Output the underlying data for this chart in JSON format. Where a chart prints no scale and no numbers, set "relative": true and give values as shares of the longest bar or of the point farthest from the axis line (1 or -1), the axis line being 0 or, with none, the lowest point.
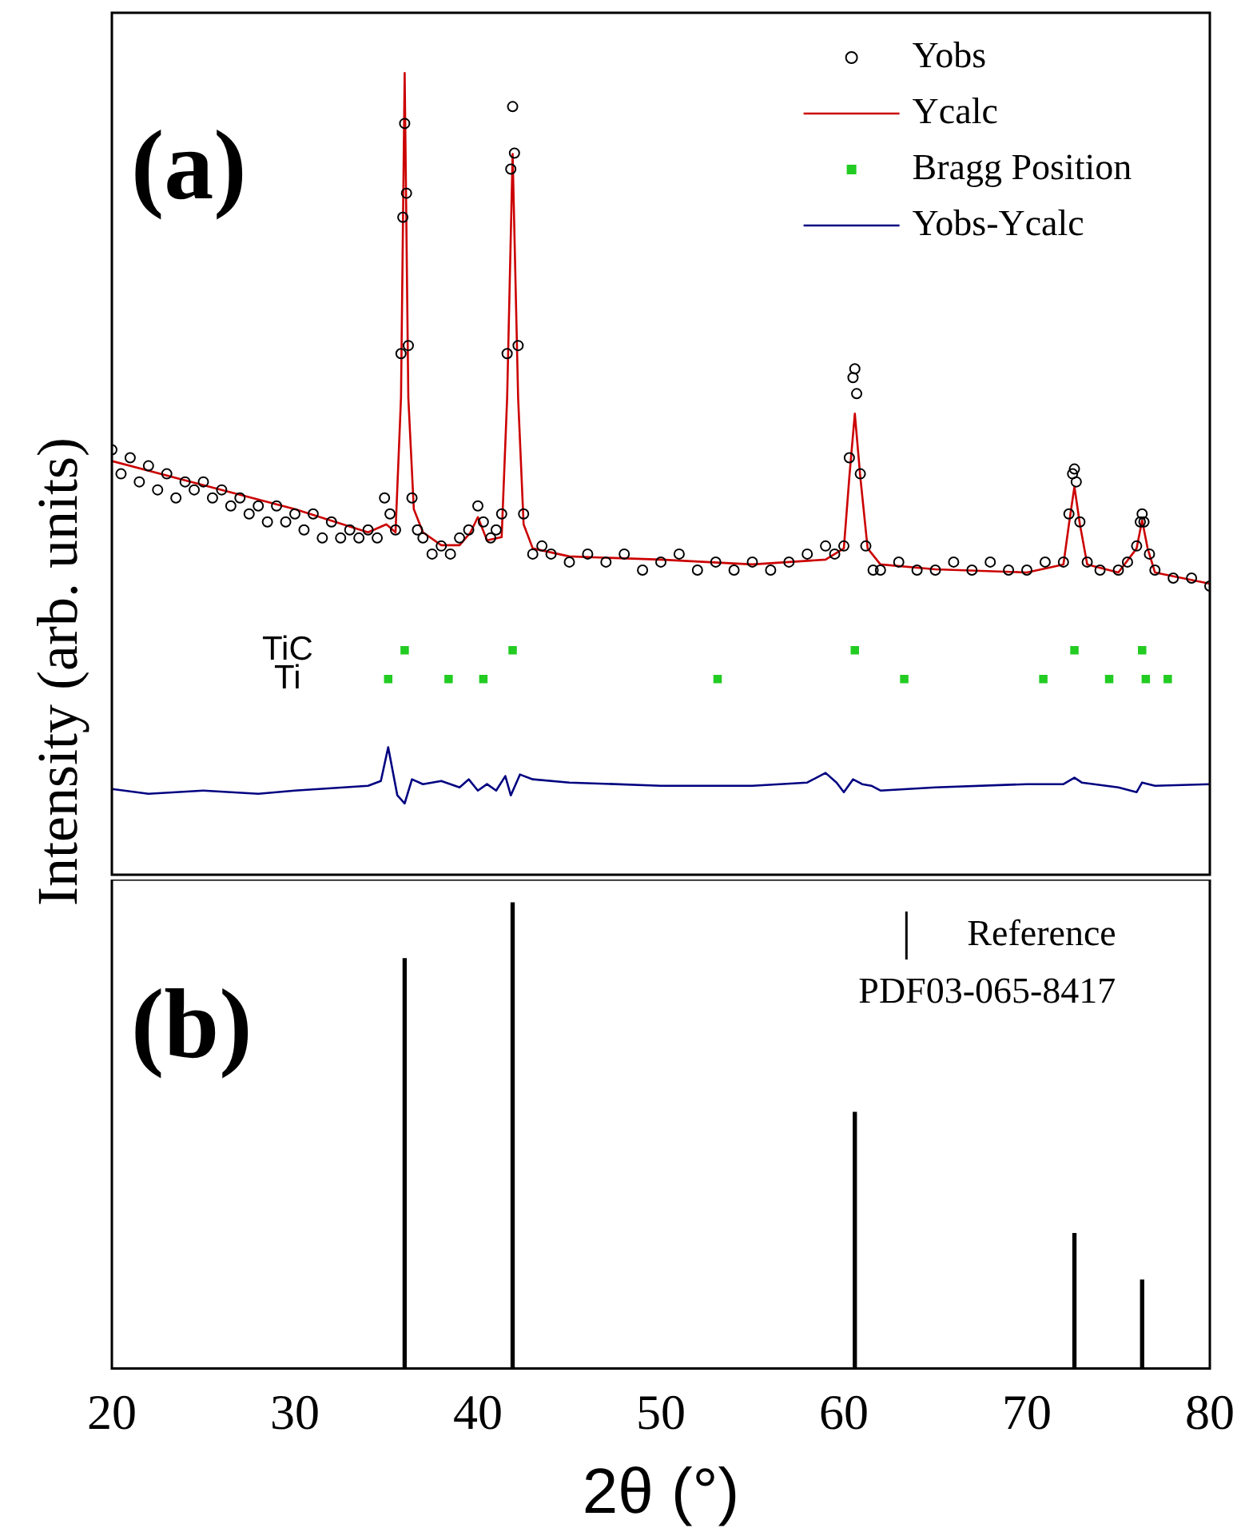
{
  "chart_data": [
    {
      "type": "line",
      "relative": true,
      "xlim": [
        20,
        80
      ],
      "tick_labels": false,
      "ylabel": "Intensity (arb. units)",
      "legend": "top right",
      "annotations": [
        "(a)",
        "TiC",
        "Ti"
      ],
      "series": [
        {
          "name": "Yobs",
          "type": "scatter",
          "marker": "circle",
          "color": "#000000",
          "x": [
            20,
            20.5,
            21,
            21.5,
            22,
            22.5,
            23,
            23.5,
            24,
            24.5,
            25,
            25.5,
            26,
            26.5,
            27,
            27.5,
            28,
            28.5,
            29,
            29.5,
            30,
            30.5,
            31,
            31.5,
            32,
            32.5,
            33,
            33.5,
            34,
            34.5,
            34.9,
            35.2,
            35.5,
            35.8,
            35.9,
            36,
            36.1,
            36.2,
            36.4,
            36.7,
            37,
            37.5,
            38,
            38.5,
            39,
            39.5,
            40,
            40.3,
            40.7,
            41,
            41.3,
            41.6,
            41.8,
            41.9,
            42,
            42.2,
            42.5,
            43,
            43.5,
            44,
            45,
            46,
            47,
            48,
            49,
            50,
            51,
            52,
            53,
            54,
            55,
            56,
            57,
            58,
            59,
            59.5,
            60,
            60.3,
            60.5,
            60.6,
            60.7,
            60.9,
            61.2,
            61.6,
            62,
            63,
            64,
            65,
            66,
            67,
            68,
            69,
            70,
            71,
            72,
            72.3,
            72.5,
            72.6,
            72.7,
            72.9,
            73.3,
            74,
            75,
            75.5,
            76,
            76.2,
            76.3,
            76.4,
            76.7,
            77,
            78,
            79,
            80
          ],
          "values": [
            0.53,
            0.5,
            0.52,
            0.49,
            0.51,
            0.48,
            0.5,
            0.47,
            0.49,
            0.48,
            0.49,
            0.47,
            0.48,
            0.46,
            0.47,
            0.45,
            0.46,
            0.44,
            0.46,
            0.44,
            0.45,
            0.43,
            0.45,
            0.42,
            0.44,
            0.42,
            0.43,
            0.42,
            0.43,
            0.42,
            0.47,
            0.45,
            0.43,
            0.65,
            0.82,
            0.937,
            0.85,
            0.66,
            0.47,
            0.43,
            0.42,
            0.4,
            0.41,
            0.4,
            0.42,
            0.43,
            0.46,
            0.44,
            0.42,
            0.43,
            0.45,
            0.65,
            0.88,
            0.958,
            0.9,
            0.66,
            0.45,
            0.4,
            0.41,
            0.4,
            0.39,
            0.4,
            0.39,
            0.4,
            0.38,
            0.39,
            0.4,
            0.38,
            0.39,
            0.38,
            0.39,
            0.38,
            0.39,
            0.4,
            0.41,
            0.4,
            0.41,
            0.52,
            0.62,
            0.631,
            0.6,
            0.5,
            0.41,
            0.38,
            0.38,
            0.39,
            0.38,
            0.38,
            0.39,
            0.38,
            0.39,
            0.38,
            0.38,
            0.39,
            0.39,
            0.45,
            0.5,
            0.506,
            0.49,
            0.44,
            0.39,
            0.38,
            0.38,
            0.39,
            0.41,
            0.44,
            0.45,
            0.44,
            0.4,
            0.38,
            0.37,
            0.37,
            0.36
          ]
        },
        {
          "name": "Ycalc",
          "type": "line",
          "color": "#cc0000",
          "x": [
            20,
            25,
            30,
            34,
            35,
            35.5,
            35.8,
            36,
            36.2,
            36.5,
            37,
            38,
            39,
            39.6,
            40,
            40.5,
            41.3,
            41.6,
            41.9,
            42.2,
            42.5,
            43,
            45,
            50,
            55,
            59,
            60,
            60.3,
            60.6,
            60.9,
            61.3,
            62,
            65,
            70,
            72,
            72.3,
            72.6,
            72.9,
            73.3,
            75,
            76,
            76.3,
            76.6,
            77,
            80
          ],
          "values": [
            0.516,
            0.486,
            0.456,
            0.427,
            0.437,
            0.427,
            0.595,
            1,
            0.595,
            0.456,
            0.427,
            0.411,
            0.411,
            0.427,
            0.446,
            0.417,
            0.421,
            0.595,
            0.899,
            0.595,
            0.437,
            0.407,
            0.397,
            0.393,
            0.387,
            0.393,
            0.407,
            0.496,
            0.575,
            0.496,
            0.407,
            0.387,
            0.381,
            0.377,
            0.387,
            0.437,
            0.484,
            0.437,
            0.387,
            0.377,
            0.407,
            0.442,
            0.407,
            0.377,
            0.363
          ]
        },
        {
          "name": "Bragg Position",
          "type": "scatter",
          "marker": "square",
          "color": "#22cc22",
          "x": [
            36,
            41.9,
            60.6,
            72.6,
            76.3,
            35.1,
            38.4,
            40.3,
            53.1,
            63.3,
            70.9,
            74.5,
            76.5,
            77.7
          ],
          "values": [
            0.28,
            0.28,
            0.28,
            0.28,
            0.28,
            0.244,
            0.244,
            0.244,
            0.244,
            0.244,
            0.244,
            0.244,
            0.244,
            0.244
          ]
        },
        {
          "name": "Yobs-Ycalc",
          "type": "line",
          "color": "#000080",
          "x": [
            20,
            22,
            25,
            28,
            30,
            34,
            34.7,
            35.1,
            35.6,
            36,
            36.4,
            37,
            38,
            39,
            39.5,
            40,
            40.5,
            41,
            41.5,
            41.8,
            42.3,
            43,
            45,
            50,
            55,
            58,
            59,
            59.6,
            60,
            60.5,
            61,
            61.5,
            62,
            65,
            70,
            72,
            72.6,
            73,
            75,
            76,
            76.3,
            77,
            80
          ],
          "values": [
            0.107,
            0.101,
            0.105,
            0.101,
            0.105,
            0.111,
            0.117,
            0.159,
            0.099,
            0.089,
            0.119,
            0.113,
            0.117,
            0.109,
            0.119,
            0.105,
            0.113,
            0.105,
            0.123,
            0.099,
            0.125,
            0.119,
            0.115,
            0.111,
            0.111,
            0.115,
            0.127,
            0.115,
            0.103,
            0.119,
            0.113,
            0.111,
            0.105,
            0.109,
            0.113,
            0.113,
            0.121,
            0.115,
            0.109,
            0.103,
            0.115,
            0.111,
            0.113
          ]
        }
      ]
    },
    {
      "type": "bar",
      "relative": true,
      "xlim": [
        20,
        80
      ],
      "xticks": [
        20,
        30,
        40,
        50,
        60,
        70,
        80
      ],
      "xlabel": "2θ (°)",
      "legend": "top right",
      "annotations": [
        "(b)"
      ],
      "x": [
        36,
        41.9,
        60.6,
        72.6,
        76.3
      ],
      "series": [
        {
          "name": "Reference PDF03-065-8417",
          "color": "#000000",
          "values": [
            0.88,
            1,
            0.55,
            0.29,
            0.19
          ]
        }
      ]
    }
  ]
}
